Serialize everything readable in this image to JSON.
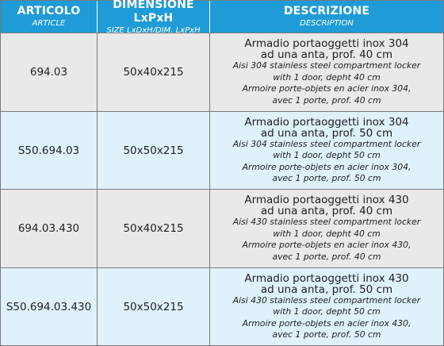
{
  "header": {
    "col1": {
      "title": "ARTICOLO",
      "subtitle": "ARTICLE"
    },
    "col2": {
      "title": "DIMENSIONE LxPxH",
      "subtitle": "SIZE LxDxH/DIM. LxPxH"
    },
    "col3": {
      "title": "DESCRIZIONE",
      "subtitle": "DESCRIPTION"
    }
  },
  "rows": [
    {
      "code": "694.03",
      "size": "50x40x215",
      "it1": "Armadio portaoggetti inox 304",
      "it2": "ad una anta, prof. 40 cm",
      "en1": "Aisi 304 stainless steel compartment locker",
      "en2": "with 1 door, depht 40 cm",
      "fr1": "Armoire porte-objets en acier inox 304,",
      "fr2": "avec 1 porte, prof. 40 cm"
    },
    {
      "code": "S50.694.03",
      "size": "50x50x215",
      "it1": "Armadio portaoggetti inox 304",
      "it2": "ad una anta, prof. 50 cm",
      "en1": "Aisi 304 stainless steel compartment locker",
      "en2": "with 1 door, depht 50 cm",
      "fr1": "Armoire porte-objets en acier inox 304,",
      "fr2": "avec 1 porte, prof. 50 cm"
    },
    {
      "code": "694.03.430",
      "size": "50x40x215",
      "it1": "Armadio portaoggetti inox 430",
      "it2": "ad una anta, prof. 40 cm",
      "en1": "Aisi 430 stainless steel compartment locker",
      "en2": "with 1 door, depht 40 cm",
      "fr1": "Armoire porte-objets en acier inox 430,",
      "fr2": "avec 1 porte, prof. 40 cm"
    },
    {
      "code": "S50.694.03.430",
      "size": "50x50x215",
      "it1": "Armadio portaoggetti inox 430",
      "it2": "ad una anta, prof. 50 cm",
      "en1": "Aisi 430 stainless steel compartment locker",
      "en2": "with 1 door, depht 50 cm",
      "fr1": "Armoire porte-objets en acier inox 430,",
      "fr2": "avec 1 porte, prof. 50 cm"
    }
  ],
  "colors": {
    "header_bg": "#1f9bd7",
    "row_grey": "#e9e9e9",
    "row_blue": "#dff1fb"
  }
}
